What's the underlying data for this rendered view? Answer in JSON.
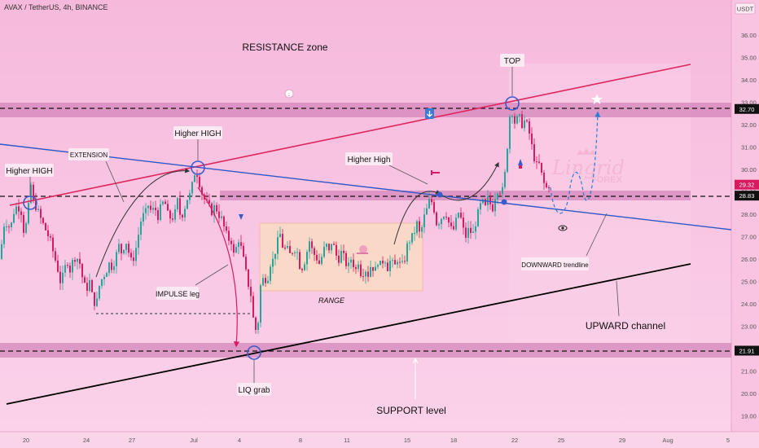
{
  "header": {
    "title": "AVAX / TetherUS, 4h, BINANCE"
  },
  "chart_data": {
    "type": "candlestick",
    "quote": "USDT",
    "y_ticks": [
      "19.00",
      "20.00",
      "21.00",
      "22.00",
      "23.00",
      "24.00",
      "25.00",
      "26.00",
      "27.00",
      "28.00",
      "29.00",
      "30.00",
      "31.00",
      "32.00",
      "33.00",
      "34.00",
      "35.00",
      "36.00"
    ],
    "x_ticks": [
      "20",
      "24",
      "27",
      "Jul",
      "4",
      "8",
      "11",
      "15",
      "18",
      "22",
      "25",
      "29",
      "Aug",
      "5"
    ],
    "price_tags": [
      {
        "value": 32.7,
        "label": "32.70"
      },
      {
        "value": 29.32,
        "label": "29.32"
      },
      {
        "value": 28.83,
        "label": "28.83"
      },
      {
        "value": 21.91,
        "label": "21.91"
      }
    ],
    "close_path": [
      [
        0,
        26.0
      ],
      [
        3,
        27.0
      ],
      [
        6,
        27.8
      ],
      [
        9,
        27.5
      ],
      [
        13,
        27.4
      ],
      [
        17,
        28.1
      ],
      [
        21,
        28.4
      ],
      [
        26,
        28.1
      ],
      [
        30,
        27.0
      ],
      [
        36,
        28.6
      ],
      [
        38,
        29.3
      ],
      [
        40,
        28.6
      ],
      [
        46,
        28.2
      ],
      [
        50,
        27.8
      ],
      [
        56,
        27.3
      ],
      [
        62,
        26.8
      ],
      [
        66,
        26.2
      ],
      [
        70,
        25.7
      ],
      [
        74,
        25.0
      ],
      [
        78,
        25.3
      ],
      [
        82,
        26.0
      ],
      [
        86,
        25.5
      ],
      [
        90,
        26.0
      ],
      [
        94,
        26.1
      ],
      [
        98,
        25.8
      ],
      [
        102,
        25.0
      ],
      [
        106,
        24.6
      ],
      [
        110,
        25.0
      ],
      [
        114,
        24.2
      ],
      [
        118,
        23.9
      ],
      [
        122,
        24.8
      ],
      [
        126,
        25.2
      ],
      [
        130,
        25.4
      ],
      [
        134,
        25.8
      ],
      [
        138,
        25.6
      ],
      [
        142,
        26.1
      ],
      [
        146,
        26.6
      ],
      [
        150,
        26.2
      ],
      [
        154,
        26.9
      ],
      [
        158,
        26.3
      ],
      [
        162,
        25.8
      ],
      [
        166,
        26.3
      ],
      [
        170,
        27.1
      ],
      [
        174,
        27.9
      ],
      [
        178,
        28.0
      ],
      [
        182,
        28.4
      ],
      [
        186,
        28.1
      ],
      [
        190,
        28.3
      ],
      [
        194,
        27.9
      ],
      [
        198,
        28.4
      ],
      [
        202,
        28.6
      ],
      [
        206,
        28.0
      ],
      [
        210,
        27.8
      ],
      [
        214,
        27.9
      ],
      [
        218,
        28.6
      ],
      [
        222,
        27.8
      ],
      [
        226,
        28.2
      ],
      [
        230,
        28.7
      ],
      [
        234,
        28.9
      ],
      [
        237,
        29.5
      ],
      [
        240,
        30.0
      ],
      [
        243,
        29.7
      ],
      [
        246,
        29.2
      ],
      [
        249,
        28.8
      ],
      [
        252,
        28.6
      ],
      [
        256,
        28.4
      ],
      [
        260,
        28.1
      ],
      [
        264,
        28.4
      ],
      [
        268,
        28.0
      ],
      [
        272,
        27.8
      ],
      [
        276,
        27.3
      ],
      [
        280,
        26.9
      ],
      [
        284,
        26.8
      ],
      [
        288,
        26.0
      ],
      [
        292,
        27.0
      ],
      [
        296,
        26.5
      ],
      [
        300,
        25.8
      ],
      [
        304,
        25.0
      ],
      [
        308,
        24.4
      ],
      [
        312,
        23.0
      ],
      [
        316,
        22.7
      ],
      [
        320,
        24.8
      ],
      [
        324,
        25.2
      ],
      [
        328,
        25.0
      ],
      [
        332,
        25.8
      ],
      [
        336,
        26.0
      ],
      [
        340,
        26.7
      ],
      [
        344,
        27.1
      ],
      [
        348,
        26.4
      ],
      [
        352,
        26.5
      ],
      [
        356,
        26.2
      ],
      [
        360,
        26.4
      ],
      [
        364,
        26.5
      ],
      [
        368,
        25.7
      ],
      [
        372,
        25.6
      ],
      [
        376,
        26.2
      ],
      [
        380,
        26.8
      ],
      [
        384,
        26.3
      ],
      [
        388,
        26.1
      ],
      [
        392,
        25.8
      ],
      [
        396,
        26.2
      ],
      [
        400,
        26.7
      ],
      [
        404,
        26.3
      ],
      [
        408,
        26.9
      ],
      [
        412,
        26.2
      ],
      [
        416,
        26.0
      ],
      [
        420,
        26.4
      ],
      [
        424,
        25.8
      ],
      [
        428,
        25.7
      ],
      [
        432,
        26.1
      ],
      [
        436,
        25.4
      ],
      [
        440,
        25.9
      ],
      [
        444,
        25.2
      ],
      [
        448,
        25.6
      ],
      [
        452,
        25.3
      ],
      [
        456,
        25.8
      ],
      [
        460,
        25.4
      ],
      [
        464,
        25.9
      ],
      [
        468,
        25.7
      ],
      [
        472,
        26.1
      ],
      [
        476,
        25.6
      ],
      [
        480,
        26.0
      ],
      [
        484,
        25.6
      ],
      [
        488,
        26.0
      ],
      [
        492,
        25.7
      ],
      [
        496,
        25.8
      ],
      [
        500,
        26.6
      ],
      [
        504,
        26.9
      ],
      [
        508,
        27.1
      ],
      [
        512,
        27.6
      ],
      [
        516,
        27.0
      ],
      [
        520,
        27.8
      ],
      [
        524,
        28.2
      ],
      [
        528,
        28.7
      ],
      [
        532,
        28.4
      ],
      [
        536,
        27.6
      ],
      [
        540,
        27.7
      ],
      [
        544,
        28.0
      ],
      [
        548,
        28.0
      ],
      [
        552,
        27.5
      ],
      [
        556,
        27.2
      ],
      [
        560,
        27.7
      ],
      [
        564,
        28.2
      ],
      [
        568,
        27.4
      ],
      [
        572,
        27.0
      ],
      [
        576,
        27.4
      ],
      [
        580,
        27.0
      ],
      [
        584,
        27.6
      ],
      [
        588,
        28.2
      ],
      [
        592,
        28.6
      ],
      [
        596,
        28.3
      ],
      [
        600,
        28.8
      ],
      [
        604,
        28.1
      ],
      [
        608,
        28.8
      ],
      [
        612,
        29.2
      ],
      [
        616,
        28.9
      ],
      [
        619,
        29.4
      ],
      [
        622,
        30.6
      ],
      [
        624,
        31.5
      ],
      [
        626,
        32.4
      ],
      [
        628,
        32.7
      ],
      [
        630,
        32.4
      ],
      [
        632,
        32.1
      ],
      [
        634,
        32.5
      ],
      [
        636,
        32.0
      ],
      [
        638,
        32.3
      ],
      [
        640,
        31.9
      ],
      [
        643,
        32.2
      ],
      [
        646,
        32.1
      ],
      [
        649,
        31.8
      ],
      [
        652,
        31.2
      ],
      [
        655,
        30.7
      ],
      [
        658,
        30.1
      ],
      [
        661,
        30.4
      ],
      [
        664,
        29.9
      ],
      [
        667,
        29.5
      ],
      [
        670,
        29.1
      ],
      [
        673,
        29.32
      ]
    ],
    "annotations": {
      "resistance": "RESISTANCE zone",
      "higher_high_left": "Higher HIGH",
      "higher_high_mid": "Higher HIGH",
      "extension": "EXTENSION",
      "higher_high_right": "Higher High",
      "top": "TOP",
      "impulse": "IMPULSE leg",
      "range": "RANGE",
      "liq_grab": "LIQ grab",
      "support": "SUPPORT level",
      "upward_channel": "UPWARD channel",
      "downward_trendline": "DOWNWARD trendline"
    },
    "watermark": {
      "line1": "Lingrid",
      "line2": "FOREX"
    },
    "colors": {
      "up": "#26a69a",
      "down": "#d81b60",
      "resistance_line": "#e0245e",
      "down_trend": "#2c58c8",
      "support_line": "#000000",
      "zone": "#d486bb",
      "range_box": "#fbdcc4",
      "marker": "#3b5bcc"
    }
  }
}
